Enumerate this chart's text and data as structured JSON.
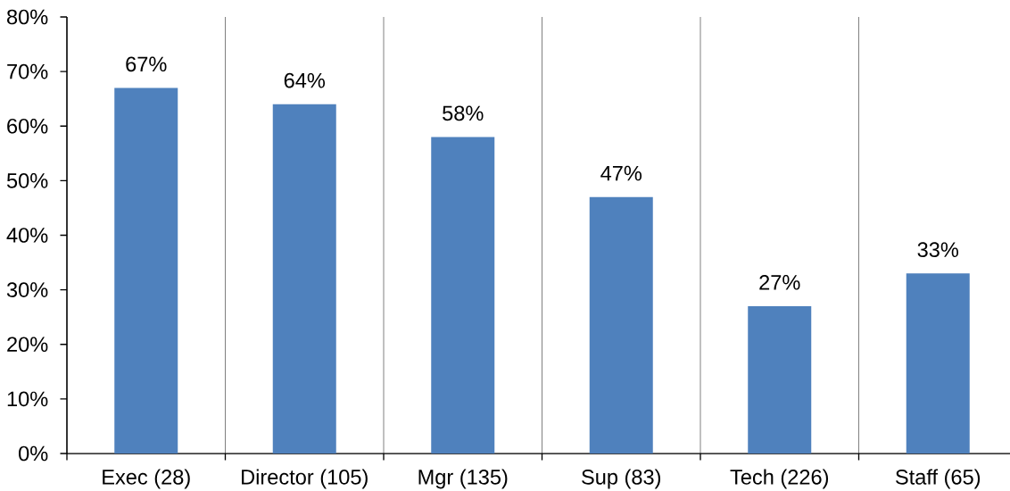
{
  "chart_data": {
    "type": "bar",
    "categories": [
      "Exec (28)",
      "Director (105)",
      "Mgr (135)",
      "Sup (83)",
      "Tech (226)",
      "Staff (65)"
    ],
    "values": [
      67,
      64,
      58,
      47,
      27,
      33
    ],
    "value_labels": [
      "67%",
      "64%",
      "58%",
      "47%",
      "27%",
      "33%"
    ],
    "color": "#4f81bd",
    "ylim": [
      0,
      80
    ],
    "yticks": [
      {
        "value": 0,
        "label": "0%"
      },
      {
        "value": 10,
        "label": "10%"
      },
      {
        "value": 20,
        "label": "20%"
      },
      {
        "value": 30,
        "label": "30%"
      },
      {
        "value": 40,
        "label": "40%"
      },
      {
        "value": 50,
        "label": "50%"
      },
      {
        "value": 60,
        "label": "60%"
      },
      {
        "value": 70,
        "label": "70%"
      },
      {
        "value": 80,
        "label": "80%"
      }
    ],
    "grid": "x"
  }
}
